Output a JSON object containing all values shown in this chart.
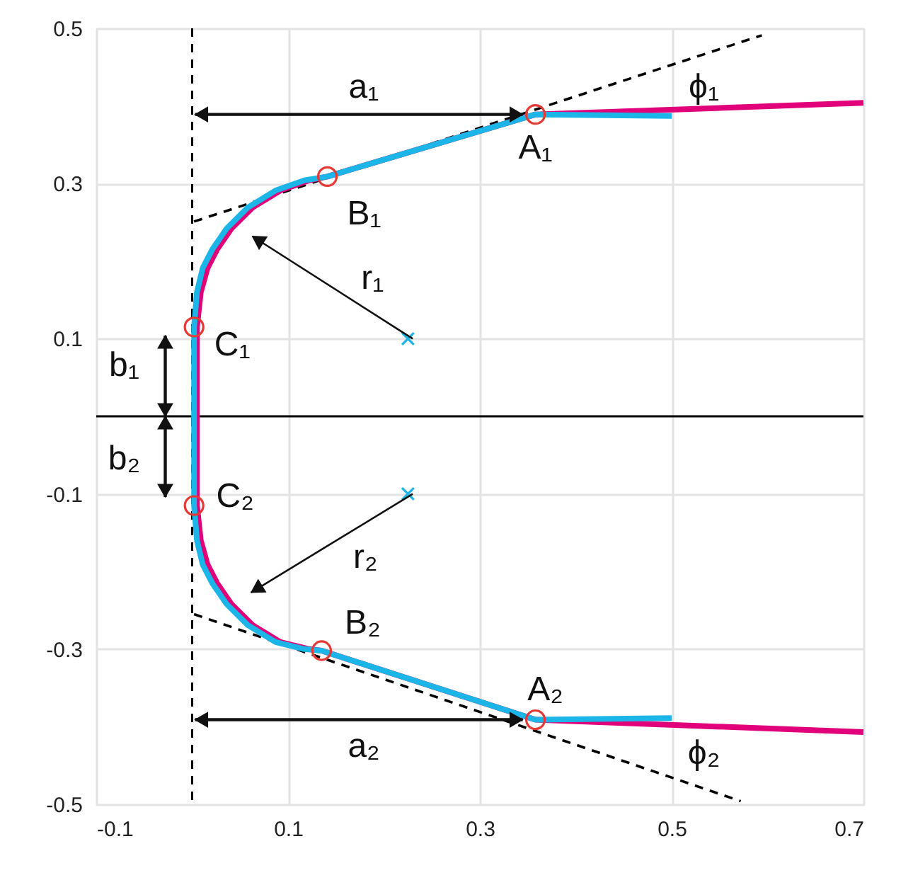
{
  "chart_data": {
    "type": "line",
    "xlim": [
      -0.1,
      0.7
    ],
    "ylim": [
      -0.5,
      0.5
    ],
    "xticks": [
      -0.1,
      0.1,
      0.3,
      0.5,
      0.7
    ],
    "yticks": [
      -0.5,
      -0.3,
      -0.1,
      0.1,
      0.3,
      0.5
    ],
    "grid": true,
    "series": [
      {
        "color": "#000000",
        "line_style": "dashed",
        "x": [
          0.002,
          0.594
        ],
        "values": [
          0.251,
          0.491
        ]
      },
      {
        "color": "#000000",
        "line_style": "dashed",
        "x": [
          0.002,
          0.572
        ],
        "values": [
          -0.255,
          -0.496
        ]
      },
      {
        "color": "#e2007a",
        "line_style": "solid",
        "x": [
          0.7,
          0.358,
          0.141,
          0.122,
          0.092,
          0.063,
          0.041,
          0.026,
          0.016,
          0.009,
          0.005,
          0.005,
          0.009,
          0.016,
          0.026,
          0.041,
          0.063,
          0.092,
          0.122,
          0.135,
          0.358,
          0.7
        ],
        "values": [
          0.404,
          0.389,
          0.309,
          0.304,
          0.291,
          0.269,
          0.242,
          0.215,
          0.191,
          0.16,
          0.115,
          -0.115,
          -0.16,
          -0.191,
          -0.215,
          -0.242,
          -0.269,
          -0.291,
          -0.3,
          -0.302,
          -0.391,
          -0.407
        ]
      },
      {
        "color": "#1cb5e8",
        "line_style": "solid",
        "x": [
          0.5,
          0.358,
          0.141,
          0.117,
          0.087,
          0.058,
          0.036,
          0.021,
          0.011,
          0.005,
          0.002,
          0.002,
          0.005,
          0.011,
          0.021,
          0.036,
          0.058,
          0.087,
          0.117,
          0.135,
          0.358,
          0.5
        ],
        "values": [
          0.387,
          0.389,
          0.309,
          0.304,
          0.291,
          0.269,
          0.242,
          0.215,
          0.191,
          0.16,
          0.115,
          -0.115,
          -0.16,
          -0.191,
          -0.215,
          -0.242,
          -0.269,
          -0.291,
          -0.3,
          -0.302,
          -0.391,
          -0.389
        ]
      },
      {
        "type": "scatter",
        "color": "#e53935",
        "marker": "circle",
        "x": [
          0.358,
          0.141,
          0.002,
          0.002,
          0.135,
          0.358
        ],
        "values": [
          0.389,
          0.309,
          0.115,
          -0.115,
          -0.302,
          -0.391
        ]
      },
      {
        "type": "scatter",
        "color": "#1cb5e8",
        "marker": "cross",
        "x": [
          0.225,
          0.225
        ],
        "values": [
          0.1,
          -0.1
        ]
      }
    ],
    "ref_lines": [
      {
        "axis": "x",
        "value": 0,
        "color": "#000000",
        "line_style": "dashed"
      },
      {
        "axis": "y",
        "value": 0,
        "color": "#000000",
        "line_style": "solid"
      }
    ],
    "annotations": [
      "A₁",
      "B₁",
      "C₁",
      "C₂",
      "B₂",
      "A₂",
      "a₁",
      "a₂",
      "b₁",
      "b₂",
      "r₁",
      "r₂",
      "ϕ₁",
      "ϕ₂"
    ]
  }
}
